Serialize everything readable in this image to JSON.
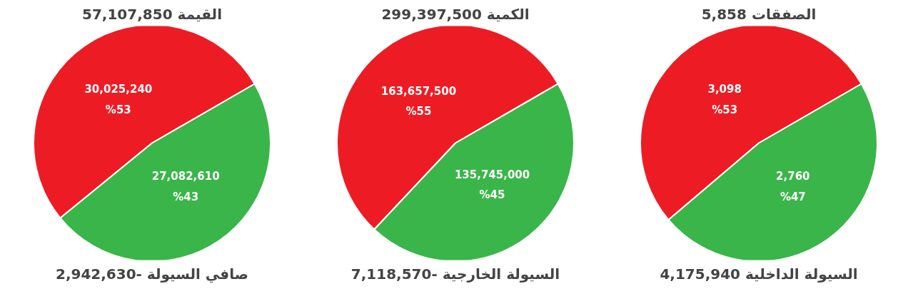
{
  "chart_data": [
    {
      "type": "pie",
      "title": "القيمة 57,107,850",
      "categories": [
        null,
        null
      ],
      "values": [
        30025240,
        27082610
      ],
      "colors": [
        "#ed1c24",
        "#3ab54a"
      ],
      "value_labels": [
        "30,025,240\n%53",
        "27,082,610\n%43"
      ],
      "annotations": [
        "صافي السيولة -2,942,630"
      ]
    },
    {
      "type": "pie",
      "title": "الكمية 299,397,500",
      "categories": [
        null,
        null
      ],
      "values": [
        163657500,
        135745000
      ],
      "colors": [
        "#ed1c24",
        "#3ab54a"
      ],
      "value_labels": [
        "163,657,500\n%55",
        "135,745,000\n%45"
      ],
      "annotations": [
        "السيولة الخارجية -7,118,570"
      ]
    },
    {
      "type": "pie",
      "title": "الصفقات 5,858",
      "categories": [
        null,
        null
      ],
      "values": [
        3098,
        2760
      ],
      "colors": [
        "#ed1c24",
        "#3ab54a"
      ],
      "value_labels": [
        "3,098\n%53",
        "2,760\n%47"
      ],
      "annotations": [
        "السيولة الداخلية 4,175,940"
      ]
    }
  ]
}
